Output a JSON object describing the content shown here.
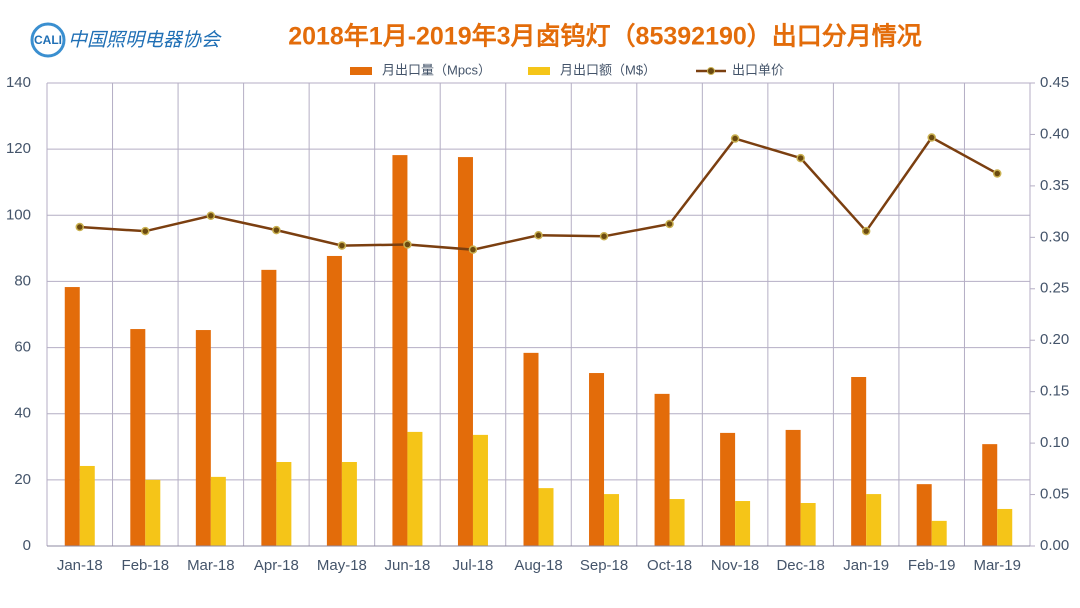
{
  "chart_data": {
    "type": "combo",
    "logo": "CALI",
    "logo_text": "中国照明电器协会",
    "title": "2018年1月-2019年3月卤钨灯（85392190）出口分月情况",
    "categories": [
      "Jan-18",
      "Feb-18",
      "Mar-18",
      "Apr-18",
      "May-18",
      "Jun-18",
      "Jul-18",
      "Aug-18",
      "Sep-18",
      "Oct-18",
      "Nov-18",
      "Dec-18",
      "Jan-19",
      "Feb-19",
      "Mar-19"
    ],
    "series": [
      {
        "name": "月出口量（Mpcs）",
        "type": "bar",
        "color": "#E36C0A",
        "values": [
          78.3,
          65.6,
          65.3,
          83.5,
          87.7,
          118.2,
          117.6,
          58.4,
          52.3,
          46.0,
          34.2,
          35.1,
          51.1,
          18.7,
          30.8
        ]
      },
      {
        "name": "月出口额（M$）",
        "type": "bar",
        "color": "#F5C518",
        "values": [
          24.2,
          20.0,
          20.9,
          25.4,
          25.4,
          34.5,
          33.6,
          17.5,
          15.7,
          14.2,
          13.6,
          13.0,
          15.7,
          7.6,
          11.2
        ]
      },
      {
        "name": "出口单价",
        "type": "line",
        "axis": "y2",
        "color": "#7B3F10",
        "values": [
          0.31,
          0.306,
          0.321,
          0.307,
          0.292,
          0.293,
          0.288,
          0.302,
          0.301,
          0.313,
          0.396,
          0.377,
          0.306,
          0.397,
          0.362
        ]
      }
    ],
    "ylim": [
      0,
      140
    ],
    "yticks": [
      0,
      20,
      40,
      60,
      80,
      100,
      120,
      140
    ],
    "y2lim": [
      0,
      0.45
    ],
    "y2ticks": [
      {
        "value": 0,
        "label": "0.00"
      },
      {
        "value": 0.05,
        "label": "0.05"
      },
      {
        "value": 0.1,
        "label": "0.10"
      },
      {
        "value": 0.15,
        "label": "0.15"
      },
      {
        "value": 0.2,
        "label": "0.20"
      },
      {
        "value": 0.25,
        "label": "0.25"
      },
      {
        "value": 0.3,
        "label": "0.30"
      },
      {
        "value": 0.35,
        "label": "0.35"
      },
      {
        "value": 0.4,
        "label": "0.40"
      },
      {
        "value": 0.45,
        "label": "0.45"
      }
    ],
    "grid": true,
    "legend": "top"
  }
}
